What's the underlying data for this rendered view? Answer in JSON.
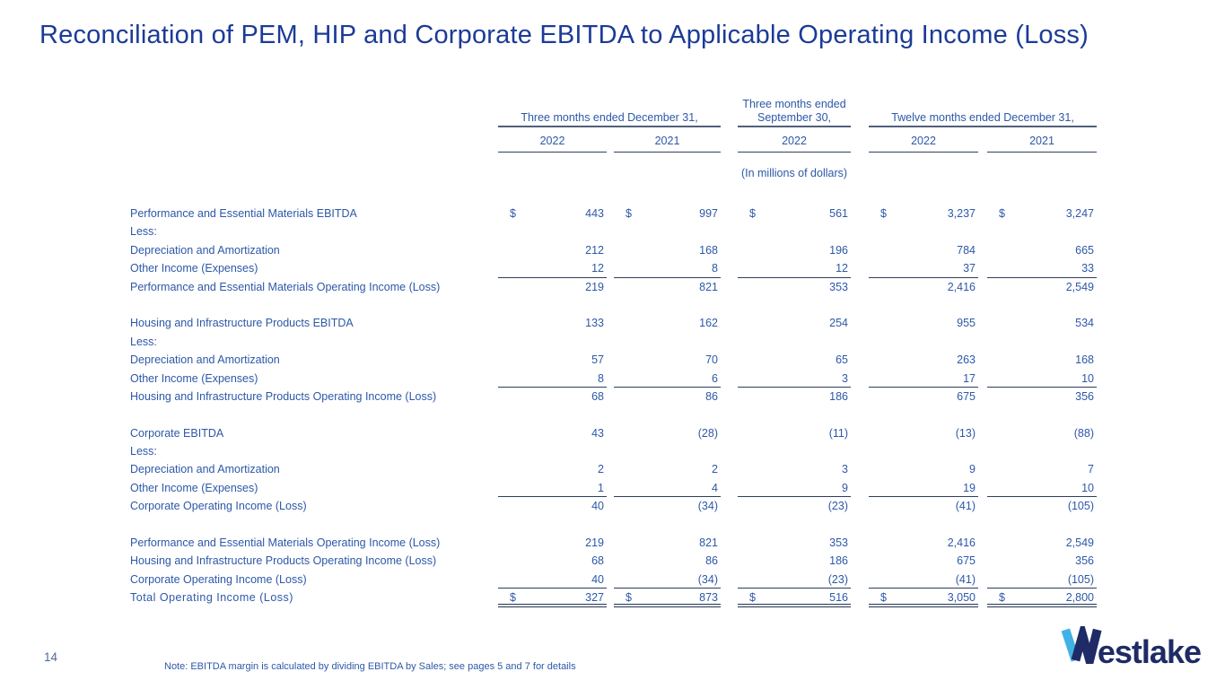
{
  "title": "Reconciliation of PEM, HIP and Corporate EBITDA to Applicable Operating Income (Loss)",
  "colors": {
    "title_blue": "#1c3b97",
    "table_text_blue": "#2d58a8",
    "rule_dark": "#2e3e5c",
    "logo_navy": "#1e2b66",
    "logo_light_blue": "#41b1e6",
    "page_number_gray_blue": "#4f6b93"
  },
  "table": {
    "units_note": "(In millions of dollars)",
    "column_groups": [
      {
        "label": "Three months ended December 31,",
        "years": [
          "2022",
          "2021"
        ]
      },
      {
        "label": "Three months ended September 30,",
        "years": [
          "2022"
        ]
      },
      {
        "label": "Twelve months ended December 31,",
        "years": [
          "2022",
          "2021"
        ]
      }
    ],
    "rows": [
      {
        "label": "Performance and Essential Materials EBITDA",
        "dollar": true,
        "values": [
          "443",
          "997",
          "561",
          "3,237",
          "3,247"
        ]
      },
      {
        "label": "Less:",
        "values": []
      },
      {
        "label": "Depreciation and Amortization",
        "values": [
          "212",
          "168",
          "196",
          "784",
          "665"
        ]
      },
      {
        "label": "Other Income (Expenses)",
        "values": [
          "12",
          "8",
          "12",
          "37",
          "33"
        ],
        "rule_below": true
      },
      {
        "label": "Performance and Essential Materials Operating Income (Loss)",
        "values": [
          "219",
          "821",
          "353",
          "2,416",
          "2,549"
        ]
      },
      {
        "spacer": true
      },
      {
        "label": "Housing and Infrastructure Products EBITDA",
        "values": [
          "133",
          "162",
          "254",
          "955",
          "534"
        ]
      },
      {
        "label": "Less:",
        "values": []
      },
      {
        "label": "Depreciation and Amortization",
        "values": [
          "57",
          "70",
          "65",
          "263",
          "168"
        ]
      },
      {
        "label": "Other Income (Expenses)",
        "values": [
          "8",
          "6",
          "3",
          "17",
          "10"
        ],
        "rule_below": true
      },
      {
        "label": "Housing and Infrastructure Products Operating Income (Loss)",
        "values": [
          "68",
          "86",
          "186",
          "675",
          "356"
        ]
      },
      {
        "spacer": true
      },
      {
        "label": "Corporate EBITDA",
        "values": [
          "43",
          "(28)",
          "(11)",
          "(13)",
          "(88)"
        ]
      },
      {
        "label": "Less:",
        "values": []
      },
      {
        "label": "Depreciation and Amortization",
        "values": [
          "2",
          "2",
          "3",
          "9",
          "7"
        ]
      },
      {
        "label": "Other Income (Expenses)",
        "values": [
          "1",
          "4",
          "9",
          "19",
          "10"
        ],
        "rule_below": true
      },
      {
        "label": "Corporate Operating Income (Loss)",
        "values": [
          "40",
          "(34)",
          "(23)",
          "(41)",
          "(105)"
        ]
      },
      {
        "spacer": true
      },
      {
        "label": "Performance and Essential Materials Operating Income (Loss)",
        "values": [
          "219",
          "821",
          "353",
          "2,416",
          "2,549"
        ]
      },
      {
        "label": "Housing and Infrastructure Products Operating Income (Loss)",
        "values": [
          "68",
          "86",
          "186",
          "675",
          "356"
        ]
      },
      {
        "label": "Corporate Operating Income (Loss)",
        "values": [
          "40",
          "(34)",
          "(23)",
          "(41)",
          "(105)"
        ],
        "rule_below": true
      },
      {
        "label": "Total Operating Income (Loss)",
        "dollar": true,
        "values": [
          "327",
          "873",
          "516",
          "3,050",
          "2,800"
        ],
        "double_rule": true,
        "emphasis": true
      }
    ]
  },
  "footer": {
    "page_number": "14",
    "note": "Note: EBITDA margin is calculated by dividing EBITDA by Sales; see pages 5 and 7 for details"
  },
  "logo": {
    "brand": "Westlake",
    "wordmark_tail": "estlake"
  }
}
